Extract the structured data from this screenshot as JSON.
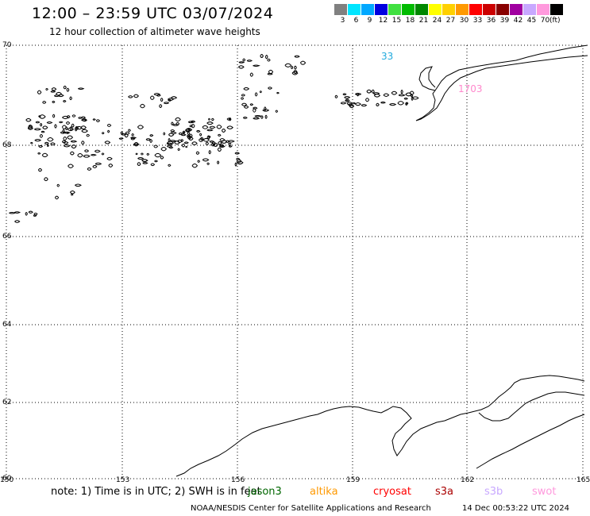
{
  "header": {
    "title": "12:00 – 23:59 UTC 03/07/2024",
    "subtitle": "12 hour collection of altimeter wave heights"
  },
  "legend": {
    "unit": "(ft)",
    "entries": [
      {
        "label": "3",
        "color": "#808080"
      },
      {
        "label": "6",
        "color": "#00e5ff"
      },
      {
        "label": "9",
        "color": "#00a8ff"
      },
      {
        "label": "12",
        "color": "#0000e0"
      },
      {
        "label": "15",
        "color": "#40e040"
      },
      {
        "label": "18",
        "color": "#00bb00"
      },
      {
        "label": "21",
        "color": "#008800"
      },
      {
        "label": "24",
        "color": "#ffff00"
      },
      {
        "label": "27",
        "color": "#ffd000"
      },
      {
        "label": "30",
        "color": "#ff9900"
      },
      {
        "label": "33",
        "color": "#ff0000"
      },
      {
        "label": "36",
        "color": "#cc0000"
      },
      {
        "label": "39",
        "color": "#880000"
      },
      {
        "label": "42",
        "color": "#a000a0"
      },
      {
        "label": "45",
        "color": "#c8a8ff"
      },
      {
        "label": "70",
        "color": "#ff99dd"
      },
      {
        "label": "",
        "color": "#000000"
      }
    ]
  },
  "map": {
    "lat_labels": [
      "70",
      "68",
      "66",
      "64",
      "62",
      "60"
    ],
    "lon_labels": [
      "150",
      "153",
      "156",
      "159",
      "162",
      "165"
    ],
    "wave_labels": [
      {
        "text": "33",
        "color": "#22aadd"
      },
      {
        "text": "1703",
        "color": "#ff88cc"
      }
    ]
  },
  "footer": {
    "note": "note: 1) Time is in UTC; 2) SWH is in feet",
    "satellites": [
      {
        "name": "jason3",
        "color": "#006600"
      },
      {
        "name": "altika",
        "color": "#ff9900"
      },
      {
        "name": "cryosat",
        "color": "#ff0000"
      },
      {
        "name": "s3a",
        "color": "#aa0000"
      },
      {
        "name": "s3b",
        "color": "#c8a8ff"
      },
      {
        "name": "swot",
        "color": "#ff99dd"
      }
    ],
    "credit": "NOAA/NESDIS Center for Satellite Applications and Research",
    "timestamp": "14 Dec 00:53:22 UTC 2024"
  }
}
